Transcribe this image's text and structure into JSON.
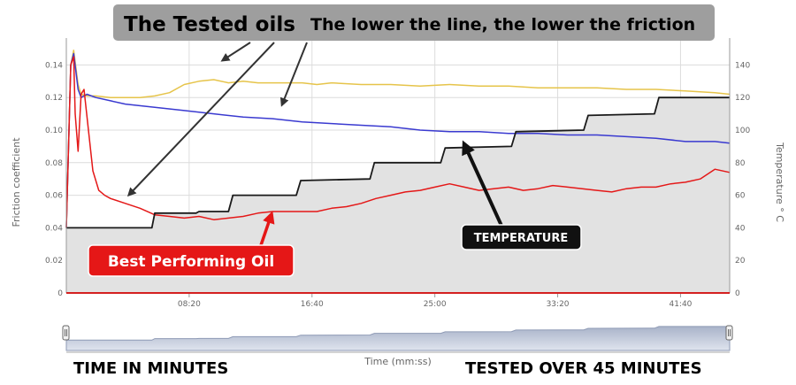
{
  "header": {
    "title": "The Tested oils",
    "subtitle": "The lower the line, the lower the friction"
  },
  "callouts": {
    "best": "Best Performing Oil",
    "temperature": "TEMPERATURE"
  },
  "captions": {
    "left": "TIME IN MINUTES",
    "right": "TESTED OVER 45 MINUTES"
  },
  "colors": {
    "yellow": "#e6c44a",
    "blue": "#3a3ad0",
    "red": "#e41818",
    "black": "#1a1a1a",
    "temp_fill": "#e2e2e2",
    "callout_bg": "#9e9e9e",
    "best_bg": "#e51717",
    "temp_bg": "#111111"
  },
  "chart_data": {
    "type": "line",
    "title": "",
    "xlabel": "Time (mm:ss)",
    "ylabel": "Friction coefficient",
    "y2label": "Temperature ° C",
    "xlim": [
      0,
      45
    ],
    "ylim": [
      0,
      0.15
    ],
    "y2lim": [
      0,
      150
    ],
    "x_ticks": [
      "08:20",
      "16:40",
      "25:00",
      "33:20",
      "41:40"
    ],
    "y_ticks": [
      "0",
      "0.02",
      "0.04",
      "0.06",
      "0.08",
      "0.10",
      "0.12",
      "0.14"
    ],
    "y2_ticks": [
      "0",
      "20",
      "40",
      "60",
      "80",
      "100",
      "120",
      "140"
    ],
    "grid": true,
    "series": [
      {
        "color_key": "yellow",
        "axis": "left",
        "x": [
          0,
          0.3,
          0.5,
          0.8,
          1.0,
          1.4,
          2,
          3,
          4,
          5,
          6,
          7,
          8,
          9,
          10,
          11,
          12,
          13,
          14,
          15,
          16,
          17,
          18,
          20,
          22,
          24,
          26,
          28,
          30,
          32,
          34,
          36,
          38,
          40,
          42,
          44,
          45
        ],
        "y": [
          0.04,
          0.14,
          0.149,
          0.128,
          0.122,
          0.121,
          0.121,
          0.12,
          0.12,
          0.12,
          0.121,
          0.123,
          0.128,
          0.13,
          0.131,
          0.129,
          0.13,
          0.129,
          0.129,
          0.129,
          0.129,
          0.128,
          0.129,
          0.128,
          0.128,
          0.127,
          0.128,
          0.127,
          0.127,
          0.126,
          0.126,
          0.126,
          0.125,
          0.125,
          0.124,
          0.123,
          0.122
        ]
      },
      {
        "color_key": "blue",
        "axis": "left",
        "x": [
          0,
          0.3,
          0.5,
          0.8,
          1.0,
          1.4,
          2,
          3,
          4,
          6,
          8,
          10,
          12,
          14,
          16,
          18,
          20,
          22,
          24,
          26,
          28,
          30,
          32,
          34,
          36,
          38,
          40,
          42,
          44,
          45
        ],
        "y": [
          0.04,
          0.14,
          0.147,
          0.125,
          0.12,
          0.122,
          0.12,
          0.118,
          0.116,
          0.114,
          0.112,
          0.11,
          0.108,
          0.107,
          0.105,
          0.104,
          0.103,
          0.102,
          0.1,
          0.099,
          0.099,
          0.098,
          0.098,
          0.097,
          0.097,
          0.096,
          0.095,
          0.093,
          0.093,
          0.092
        ]
      },
      {
        "color_key": "red",
        "axis": "left",
        "x": [
          0,
          0.3,
          0.5,
          0.6,
          0.8,
          1.0,
          1.2,
          1.5,
          1.8,
          2.2,
          2.6,
          3,
          4,
          5,
          6,
          7,
          8,
          9,
          10,
          11,
          12,
          13,
          14,
          15,
          16,
          17,
          18,
          19,
          20,
          21,
          22,
          23,
          24,
          25,
          26,
          27,
          28,
          29,
          30,
          31,
          32,
          33,
          34,
          35,
          36,
          37,
          38,
          39,
          40,
          41,
          42,
          43,
          44,
          45
        ],
        "y": [
          0.04,
          0.14,
          0.145,
          0.11,
          0.087,
          0.122,
          0.125,
          0.1,
          0.075,
          0.063,
          0.06,
          0.058,
          0.055,
          0.052,
          0.048,
          0.047,
          0.046,
          0.047,
          0.045,
          0.046,
          0.047,
          0.049,
          0.05,
          0.05,
          0.05,
          0.05,
          0.052,
          0.053,
          0.055,
          0.058,
          0.06,
          0.062,
          0.063,
          0.065,
          0.067,
          0.065,
          0.063,
          0.064,
          0.065,
          0.063,
          0.064,
          0.066,
          0.065,
          0.064,
          0.063,
          0.062,
          0.064,
          0.065,
          0.065,
          0.067,
          0.068,
          0.07,
          0.076,
          0.074
        ]
      },
      {
        "color_key": "black",
        "axis": "right",
        "fill": true,
        "x": [
          0,
          5.8,
          6.0,
          8.8,
          9.0,
          11.0,
          11.3,
          15.6,
          15.9,
          20.6,
          20.9,
          25.4,
          25.7,
          30.2,
          30.5,
          35.1,
          35.4,
          39.9,
          40.2,
          44.9,
          45
        ],
        "y": [
          40,
          40,
          49,
          49,
          50,
          50,
          60,
          60,
          69,
          70,
          80,
          80,
          89,
          90,
          99,
          100,
          109,
          110,
          120,
          120,
          120
        ]
      }
    ]
  }
}
